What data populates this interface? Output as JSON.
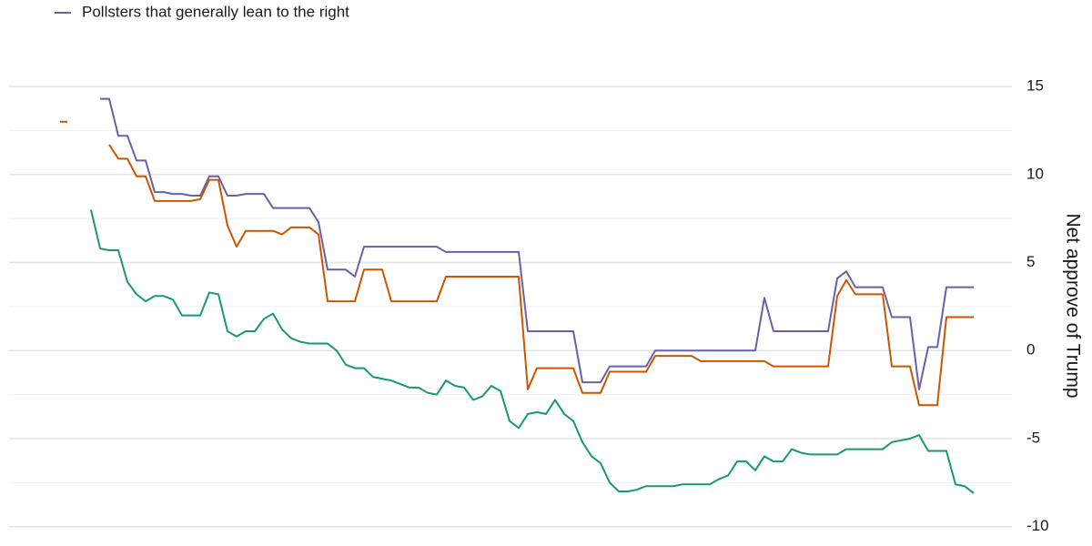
{
  "chart_data": {
    "type": "line",
    "y_label": "Net approve of Trump",
    "y_axis_side": "right",
    "legend_position": "top-left",
    "grid": true,
    "ylim": [
      -11.1,
      16.4
    ],
    "yticks": [
      -10,
      -5,
      0,
      5,
      10,
      15
    ],
    "minor_yticks": [
      -7.5,
      -2.5,
      2.5,
      7.5,
      12.5
    ],
    "categories": [
      null,
      null,
      null,
      null,
      null,
      null,
      null,
      null,
      null,
      null,
      null,
      null,
      null,
      null,
      null,
      null,
      null,
      null,
      null,
      null,
      null,
      null,
      null,
      null,
      null,
      null,
      null,
      null,
      null,
      null,
      null,
      null,
      null,
      null,
      null,
      null,
      null,
      null,
      null,
      null,
      null,
      null,
      null,
      null,
      null,
      null,
      null,
      null,
      null,
      null,
      null,
      null,
      null,
      null,
      null,
      null,
      null,
      null,
      null,
      null,
      null,
      null,
      null,
      null,
      null,
      null,
      null,
      null,
      null,
      null,
      null,
      null,
      null,
      null,
      null,
      null,
      null,
      null,
      null,
      null,
      null,
      null,
      null,
      null,
      null,
      null,
      null,
      null,
      null,
      null,
      null,
      null,
      null,
      null,
      null,
      null,
      null,
      null,
      null,
      null,
      null
    ],
    "series": [
      {
        "name": "Pollsters that generally lean to the right",
        "color": "#6a5fa8",
        "values": [
          null,
          null,
          null,
          null,
          14.3,
          14.3,
          12.2,
          12.2,
          10.8,
          10.8,
          9.0,
          9.0,
          8.9,
          8.9,
          8.8,
          8.8,
          9.9,
          9.9,
          8.8,
          8.8,
          8.9,
          8.9,
          8.9,
          8.1,
          8.1,
          8.1,
          8.1,
          8.1,
          7.3,
          4.6,
          4.6,
          4.6,
          4.2,
          5.9,
          5.9,
          5.9,
          5.9,
          5.9,
          5.9,
          5.9,
          5.9,
          5.9,
          5.6,
          5.6,
          5.6,
          5.6,
          5.6,
          5.6,
          5.6,
          5.6,
          5.6,
          1.1,
          1.1,
          1.1,
          1.1,
          1.1,
          1.1,
          -1.8,
          -1.8,
          -1.8,
          -0.9,
          -0.9,
          -0.9,
          -0.9,
          -0.9,
          0,
          0,
          0,
          0,
          0,
          0,
          0,
          0,
          0,
          0,
          0,
          0,
          3.0,
          1.1,
          1.1,
          1.1,
          1.1,
          1.1,
          1.1,
          1.1,
          4.1,
          4.5,
          3.6,
          3.6,
          3.6,
          3.6,
          1.9,
          1.9,
          1.9,
          -2.2,
          0.2,
          0.2,
          3.6,
          3.6,
          3.6,
          3.6
        ]
      },
      {
        "color": "#cc5500",
        "values": [
          13.0,
          null,
          null,
          null,
          null,
          11.7,
          10.9,
          10.9,
          9.9,
          9.9,
          8.5,
          8.5,
          8.5,
          8.5,
          8.5,
          8.6,
          9.7,
          9.7,
          7.1,
          5.9,
          6.8,
          6.8,
          6.8,
          6.8,
          6.6,
          7.0,
          7.0,
          7.0,
          6.6,
          2.8,
          2.8,
          2.8,
          2.8,
          4.6,
          4.6,
          4.6,
          2.8,
          2.8,
          2.8,
          2.8,
          2.8,
          2.8,
          4.2,
          4.2,
          4.2,
          4.2,
          4.2,
          4.2,
          4.2,
          4.2,
          4.2,
          -2.2,
          -1.0,
          -1.0,
          -1.0,
          -1.0,
          -1.0,
          -2.4,
          -2.4,
          -2.4,
          -1.2,
          -1.2,
          -1.2,
          -1.2,
          -1.2,
          -0.3,
          -0.3,
          -0.3,
          -0.3,
          -0.3,
          -0.6,
          -0.6,
          -0.6,
          -0.6,
          -0.6,
          -0.6,
          -0.6,
          -0.6,
          -0.9,
          -0.9,
          -0.9,
          -0.9,
          -0.9,
          -0.9,
          -0.9,
          3.1,
          4.0,
          3.2,
          3.2,
          3.2,
          3.2,
          -0.9,
          -0.9,
          -0.9,
          -3.1,
          -3.1,
          -3.1,
          1.9,
          1.9,
          1.9,
          1.9
        ]
      },
      {
        "color": "#169a6f",
        "values": [
          null,
          null,
          null,
          8.0,
          5.8,
          5.7,
          5.7,
          3.9,
          3.2,
          2.8,
          3.1,
          3.1,
          2.9,
          2.0,
          2.0,
          2.0,
          3.3,
          3.2,
          1.1,
          0.8,
          1.1,
          1.1,
          1.8,
          2.1,
          1.2,
          0.7,
          0.5,
          0.4,
          0.4,
          0.4,
          0.0,
          -0.8,
          -1.0,
          -1.0,
          -1.5,
          -1.6,
          -1.7,
          -1.9,
          -2.1,
          -2.1,
          -2.4,
          -2.5,
          -1.7,
          -2.0,
          -2.1,
          -2.8,
          -2.6,
          -2.0,
          -2.3,
          -4.0,
          -4.4,
          -3.6,
          -3.5,
          -3.6,
          -2.8,
          -3.6,
          -4.0,
          -5.2,
          -6.0,
          -6.4,
          -7.5,
          -8.0,
          -8.0,
          -7.9,
          -7.7,
          -7.7,
          -7.7,
          -7.7,
          -7.6,
          -7.6,
          -7.6,
          -7.6,
          -7.3,
          -7.1,
          -6.3,
          -6.3,
          -6.8,
          -6.0,
          -6.3,
          -6.3,
          -5.6,
          -5.8,
          -5.9,
          -5.9,
          -5.9,
          -5.9,
          -5.6,
          -5.6,
          -5.6,
          -5.6,
          -5.6,
          -5.2,
          -5.1,
          -5.0,
          -4.8,
          -5.7,
          -5.7,
          -5.7,
          -7.6,
          -7.7,
          -8.1
        ]
      }
    ]
  }
}
